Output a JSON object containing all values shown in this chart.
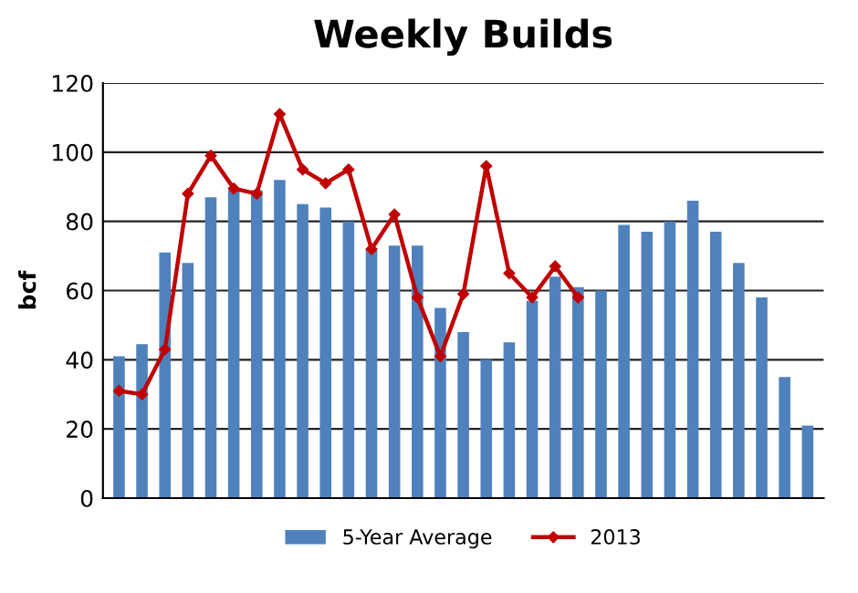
{
  "chart_data": {
    "type": "bar",
    "title": "Weekly Builds",
    "ylabel": "bcf",
    "categories": [
      null,
      null,
      null,
      null,
      null,
      null,
      null,
      null,
      null,
      null,
      null,
      null,
      null,
      null,
      null,
      null,
      null,
      null,
      null,
      null,
      null,
      null,
      null,
      null,
      null,
      null,
      null,
      null,
      null,
      null,
      null
    ],
    "series": [
      {
        "name": "5-Year Average",
        "color": "#4f81bd",
        "values": [
          41,
          44.5,
          71,
          68,
          87,
          89,
          89,
          92,
          85,
          84,
          80,
          72,
          73,
          73,
          55,
          48,
          40,
          45,
          57,
          64,
          61,
          60,
          79,
          77,
          80,
          86,
          77,
          68,
          58,
          35,
          21
        ]
      },
      {
        "name": "2013",
        "type": "line",
        "color": "#c00000",
        "marker": "diamond",
        "values": [
          31,
          30,
          43,
          88,
          99,
          89.5,
          88,
          111,
          95,
          91,
          95,
          72,
          82,
          58,
          41,
          59,
          96,
          65,
          58,
          67,
          58,
          null,
          null,
          null,
          null,
          null,
          null,
          null,
          null,
          null,
          null
        ]
      }
    ],
    "ylim": [
      0,
      120
    ],
    "yticks": [
      0,
      20,
      40,
      60,
      80,
      100,
      120
    ],
    "grid": "y",
    "legend": "bottom",
    "tick_labels": "y"
  }
}
